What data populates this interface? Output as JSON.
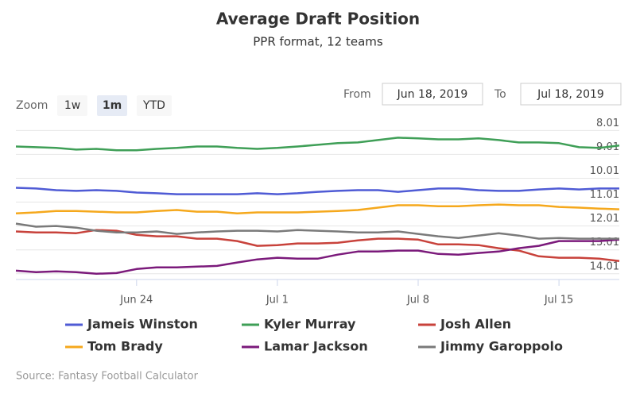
{
  "chart_data": {
    "type": "line",
    "title": "Average Draft Position",
    "subtitle": "PPR format, 12 teams",
    "categories": [
      null,
      null,
      null,
      null,
      null,
      null,
      "Jun 24",
      null,
      null,
      null,
      null,
      null,
      null,
      "Jul 1",
      null,
      null,
      null,
      null,
      null,
      null,
      "Jul 8",
      null,
      null,
      null,
      null,
      null,
      null,
      "Jul 15",
      null,
      null,
      null
    ],
    "ylim": [
      7.6,
      14.25
    ],
    "yticks": [
      8.01,
      9.01,
      10.01,
      11.01,
      12.01,
      13.01,
      14.01
    ],
    "reversed": true,
    "grid": true,
    "legend": "bottom",
    "series": [
      {
        "name": "Jameis Winston",
        "color": "#4f5bd5",
        "values": [
          10.41,
          10.44,
          10.51,
          10.54,
          10.51,
          10.54,
          10.61,
          10.64,
          10.68,
          10.68,
          10.68,
          10.68,
          10.64,
          10.68,
          10.64,
          10.58,
          10.54,
          10.51,
          10.51,
          10.58,
          10.51,
          10.44,
          10.44,
          10.51,
          10.54,
          10.54,
          10.48,
          10.44,
          10.48,
          10.44,
          10.44
        ]
      },
      {
        "name": "Kyler Murray",
        "color": "#3f9f57",
        "values": [
          8.68,
          8.71,
          8.74,
          8.81,
          8.78,
          8.84,
          8.84,
          8.78,
          8.74,
          8.68,
          8.68,
          8.74,
          8.78,
          8.74,
          8.68,
          8.61,
          8.54,
          8.51,
          8.41,
          8.31,
          8.34,
          8.38,
          8.38,
          8.34,
          8.41,
          8.51,
          8.51,
          8.54,
          8.71,
          8.74,
          8.64
        ]
      },
      {
        "name": "Josh Allen",
        "color": "#c8423b",
        "values": [
          12.24,
          12.28,
          12.28,
          12.31,
          12.18,
          12.21,
          12.38,
          12.44,
          12.44,
          12.54,
          12.54,
          12.64,
          12.84,
          12.81,
          12.74,
          12.74,
          12.71,
          12.61,
          12.54,
          12.54,
          12.58,
          12.78,
          12.78,
          12.81,
          12.94,
          13.04,
          13.28,
          13.34,
          13.34,
          13.38,
          13.48
        ]
      },
      {
        "name": "Tom Brady",
        "color": "#f5a81c",
        "values": [
          11.48,
          11.44,
          11.38,
          11.38,
          11.41,
          11.44,
          11.44,
          11.38,
          11.34,
          11.41,
          11.41,
          11.48,
          11.44,
          11.44,
          11.44,
          11.41,
          11.38,
          11.34,
          11.24,
          11.14,
          11.14,
          11.18,
          11.18,
          11.14,
          11.11,
          11.14,
          11.14,
          11.21,
          11.24,
          11.28,
          11.31
        ]
      },
      {
        "name": "Lamar Jackson",
        "color": "#7b1a7b",
        "values": [
          13.88,
          13.94,
          13.91,
          13.94,
          14.01,
          13.98,
          13.81,
          13.74,
          13.74,
          13.71,
          13.68,
          13.54,
          13.41,
          13.34,
          13.38,
          13.38,
          13.21,
          13.08,
          13.08,
          13.04,
          13.04,
          13.18,
          13.21,
          13.14,
          13.08,
          12.94,
          12.84,
          12.64,
          12.64,
          12.64,
          12.58
        ]
      },
      {
        "name": "Jimmy Garoppolo",
        "color": "#7a7a7a",
        "values": [
          11.91,
          12.04,
          12.01,
          12.08,
          12.21,
          12.28,
          12.28,
          12.24,
          12.34,
          12.28,
          12.24,
          12.21,
          12.21,
          12.24,
          12.18,
          12.21,
          12.24,
          12.28,
          12.28,
          12.24,
          12.34,
          12.44,
          12.51,
          12.41,
          12.31,
          12.41,
          12.54,
          12.51,
          12.54,
          12.54,
          12.54
        ]
      }
    ]
  },
  "range_selector": {
    "zoom_label": "Zoom",
    "buttons": [
      "1w",
      "1m",
      "YTD"
    ],
    "selected": 1,
    "from_label": "From",
    "from": "Jun 18, 2019",
    "to_label": "To",
    "to": "Jul 18, 2019"
  },
  "source": "Source: Fantasy Football Calculator"
}
